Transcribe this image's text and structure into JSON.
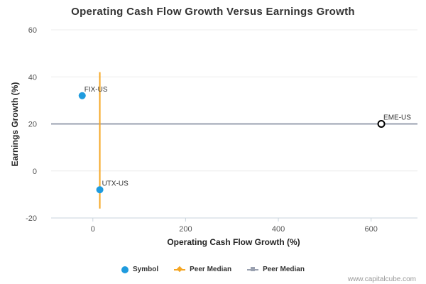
{
  "chart_data": {
    "type": "scatter",
    "title": "Operating Cash Flow Growth Versus Earnings Growth",
    "xlabel": "Operating Cash Flow Growth (%)",
    "ylabel": "Earnings Growth (%)",
    "xlim": [
      -90,
      700
    ],
    "ylim": [
      -20,
      60
    ],
    "x_ticks": [
      0,
      200,
      400,
      600
    ],
    "y_ticks": [
      -20,
      0,
      20,
      40,
      60
    ],
    "grid": "horizontal-light",
    "legend_position": "bottom",
    "points": [
      {
        "label": "FIX-US",
        "x": -23,
        "y": 32,
        "style": "filled"
      },
      {
        "label": "UTX-US",
        "x": 15,
        "y": -8,
        "style": "filled"
      },
      {
        "label": "EME-US",
        "x": 622,
        "y": 20,
        "style": "hollow"
      }
    ],
    "peer_median_x": 15,
    "peer_median_x_range": [
      -16,
      42
    ],
    "peer_median_y": 20,
    "legend": [
      {
        "name": "Symbol",
        "color": "#1f9bde",
        "marker": "dot"
      },
      {
        "name": "Peer Median",
        "color": "#f5a623",
        "marker": "diamond-line"
      },
      {
        "name": "Peer Median",
        "color": "#9aa1b0",
        "marker": "square-line"
      }
    ],
    "colors": {
      "symbol": "#1f9bde",
      "median_vertical": "#f5a623",
      "median_horizontal": "#9aa1b0",
      "highlight": "#000000"
    }
  },
  "credit": "www.capitalcube.com"
}
